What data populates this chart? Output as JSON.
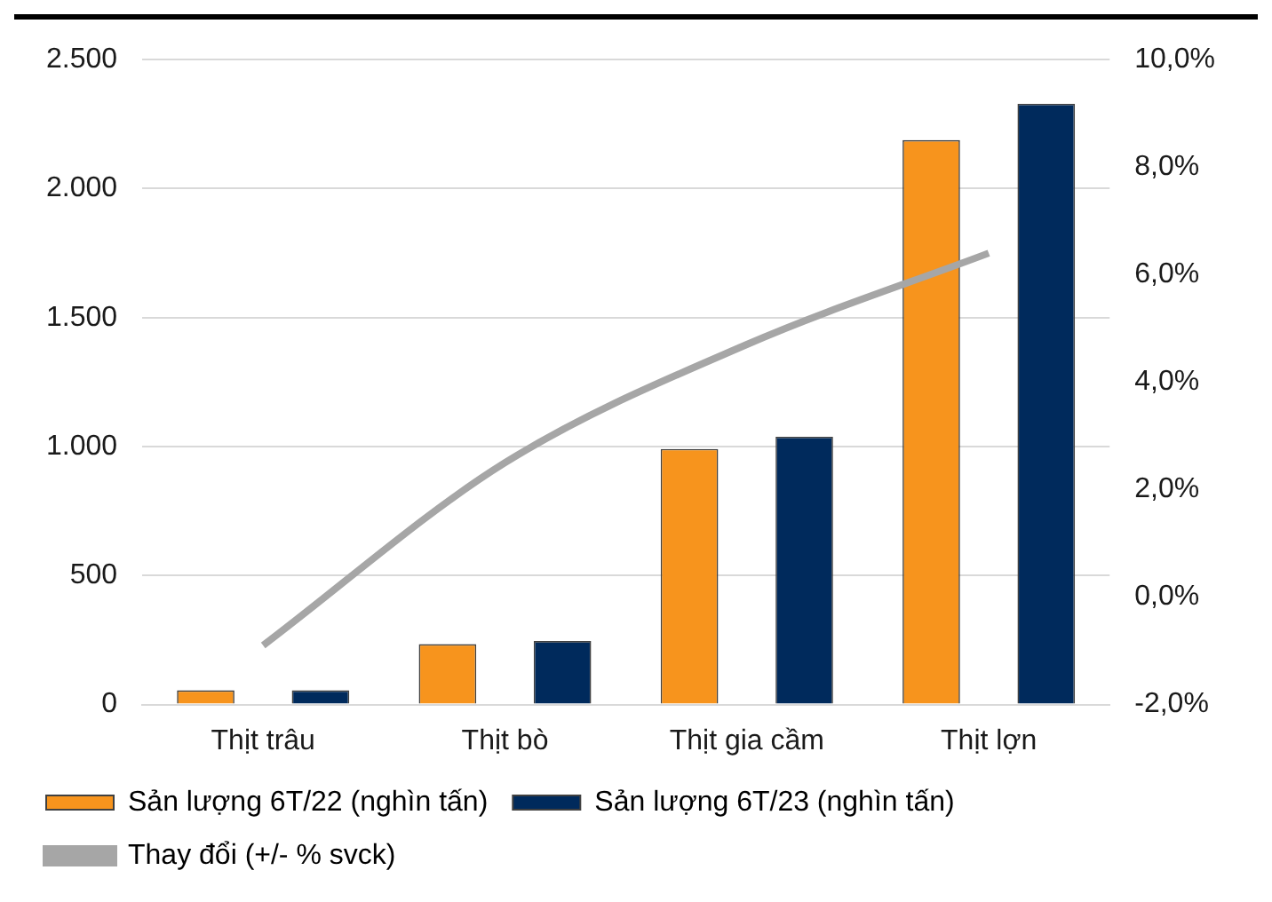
{
  "chart_data": {
    "type": "bar",
    "categories": [
      "Thịt trâu",
      "Thịt bò",
      "Thịt gia cầm",
      "Thịt lợn"
    ],
    "series": [
      {
        "name": "Sản lượng 6T/22 (nghìn tấn)",
        "color": "#f7941d",
        "values": [
          55,
          234,
          991,
          2188
        ]
      },
      {
        "name": "Sản lượng 6T/23 (nghìn tấn)",
        "color": "#002a5c",
        "values": [
          55,
          246,
          1038,
          2329
        ]
      },
      {
        "name": "Thay đổi (+/- % svck)",
        "color": "#a6a6a6",
        "type": "line",
        "axis": "y2",
        "values": [
          -0.9,
          2.5,
          4.7,
          6.4
        ]
      }
    ],
    "ylim": [
      0,
      2500
    ],
    "yticks": [
      {
        "value": 0,
        "label": "0"
      },
      {
        "value": 500,
        "label": "500"
      },
      {
        "value": 1000,
        "label": "1.000"
      },
      {
        "value": 1500,
        "label": "1.500"
      },
      {
        "value": 2000,
        "label": "2.000"
      },
      {
        "value": 2500,
        "label": "2.500"
      }
    ],
    "y2lim": [
      -2,
      10
    ],
    "y2ticks": [
      {
        "value": -2,
        "label": "-2,0%"
      },
      {
        "value": 0,
        "label": "0,0%"
      },
      {
        "value": 2,
        "label": "2,0%"
      },
      {
        "value": 4,
        "label": "4,0%"
      },
      {
        "value": 6,
        "label": "6,0%"
      },
      {
        "value": 8,
        "label": "8,0%"
      },
      {
        "value": 10,
        "label": "10,0%"
      }
    ],
    "grid": "y",
    "legend": "bottom",
    "marker": "none"
  }
}
